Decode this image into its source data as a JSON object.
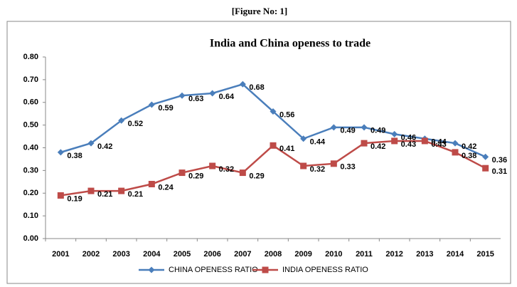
{
  "caption": "[Figure No: 1]",
  "chart_data": {
    "type": "line",
    "title": "India and China openess to trade",
    "categories": [
      "2001",
      "2002",
      "2003",
      "2004",
      "2005",
      "2006",
      "2007",
      "2008",
      "2009",
      "2010",
      "2011",
      "2012",
      "2013",
      "2014",
      "2015"
    ],
    "series": [
      {
        "name": "CHINA OPENESS RATIO",
        "color": "#4a7ebb",
        "marker": "diamond",
        "values": [
          0.38,
          0.42,
          0.52,
          0.59,
          0.63,
          0.64,
          0.68,
          0.56,
          0.44,
          0.49,
          0.49,
          0.46,
          0.44,
          0.42,
          0.36
        ]
      },
      {
        "name": "INDIA OPENESS RATIO",
        "color": "#be4b48",
        "marker": "square",
        "values": [
          0.19,
          0.21,
          0.21,
          0.24,
          0.29,
          0.32,
          0.29,
          0.41,
          0.32,
          0.33,
          0.42,
          0.43,
          0.43,
          0.38,
          0.31
        ]
      }
    ],
    "ylim": [
      0,
      0.8
    ],
    "yticks": [
      {
        "value": 0,
        "label": "0.00"
      },
      {
        "value": 0.1,
        "label": "0.10"
      },
      {
        "value": 0.2,
        "label": "0.20"
      },
      {
        "value": 0.3,
        "label": "0.30"
      },
      {
        "value": 0.4,
        "label": "0.40"
      },
      {
        "value": 0.5,
        "label": "0.50"
      },
      {
        "value": 0.6,
        "label": "0.60"
      },
      {
        "value": 0.7,
        "label": "0.70"
      },
      {
        "value": 0.8,
        "label": "0.80"
      }
    ],
    "legend": "bottom"
  }
}
